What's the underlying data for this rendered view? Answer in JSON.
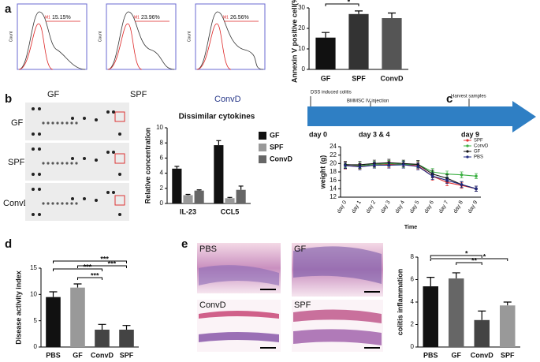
{
  "panel_labels": [
    "a",
    "b",
    "c",
    "d",
    "e"
  ],
  "flow": {
    "y_label": "Count",
    "gate": "M1",
    "percents": [
      "15.15%",
      "23.96%",
      "26.56%"
    ]
  },
  "blots": {
    "columns": [
      "GF",
      "SPF",
      "ConvD"
    ],
    "rows": [
      "GF",
      "SPF",
      "ConvD"
    ]
  },
  "timeline": {
    "events": [
      "DSS induced colitis",
      "BMMSC IV injection",
      "Harvest samples"
    ],
    "days": [
      "day 0",
      "day 3 & 4",
      "day 9"
    ]
  },
  "histology": {
    "labels": [
      "PBS",
      "GF",
      "ConvD",
      "SPF"
    ]
  },
  "chart_data": [
    {
      "type": "bar",
      "y_label": "Annexin V positive cell(%)",
      "categories": [
        "GF",
        "SPF",
        "ConvD"
      ],
      "values": [
        15.5,
        27,
        25
      ],
      "errors": [
        2.5,
        1.5,
        2.5
      ],
      "colors": [
        "#111111",
        "#333333",
        "#555555"
      ],
      "ylim": [
        0,
        30
      ],
      "yticks": [
        0,
        10,
        20,
        30
      ],
      "annotations": [
        "*"
      ]
    },
    {
      "type": "bar",
      "title": "Dissimilar cytokines",
      "y_label": "Relative concentration",
      "categories": [
        "IL-23",
        "CCL5"
      ],
      "series": [
        {
          "name": "GF",
          "color": "#111111",
          "values": [
            4.6,
            7.7
          ],
          "errors": [
            0.3,
            0.6
          ]
        },
        {
          "name": "SPF",
          "color": "#999999",
          "values": [
            1.1,
            0.7
          ],
          "errors": [
            0.1,
            0.1
          ]
        },
        {
          "name": "ConvD",
          "color": "#666666",
          "values": [
            1.7,
            1.8
          ],
          "errors": [
            0.1,
            0.5
          ]
        }
      ],
      "ylim": [
        0,
        10
      ],
      "yticks": [
        0,
        2,
        4,
        6,
        8,
        10
      ]
    },
    {
      "type": "line",
      "y_label": "weight (g)",
      "x_label": "Time",
      "categories": [
        "day 0",
        "day 1",
        "day 2",
        "day 3",
        "day 4",
        "day 5",
        "day 6",
        "day 7",
        "day 8",
        "day 9"
      ],
      "series": [
        {
          "name": "SPF",
          "color": "#e03030",
          "values": [
            19.5,
            19.3,
            19.6,
            19.8,
            19.7,
            19.5,
            17,
            15.5,
            14.8,
            14
          ],
          "errors": [
            0.8,
            0.7,
            0.7,
            0.8,
            0.8,
            0.9,
            1,
            0.8,
            0.7,
            0.6
          ]
        },
        {
          "name": "ConvD",
          "color": "#3cb043",
          "values": [
            19.8,
            19.5,
            19.8,
            20,
            19.8,
            19.8,
            18,
            17.5,
            17.3,
            17
          ],
          "errors": [
            0.7,
            0.7,
            0.7,
            0.7,
            0.8,
            0.8,
            0.8,
            0.7,
            0.7,
            0.6
          ]
        },
        {
          "name": "GF",
          "color": "#111111",
          "values": [
            19.7,
            19.7,
            20,
            20.2,
            20,
            19.8,
            17.5,
            16.5,
            15,
            14
          ],
          "errors": [
            0.8,
            0.8,
            0.8,
            0.8,
            0.8,
            0.9,
            0.9,
            0.8,
            0.7,
            0.6
          ]
        },
        {
          "name": "PBS",
          "color": "#1f2a80",
          "values": [
            19.5,
            19.2,
            19.6,
            19.6,
            19.7,
            19.3,
            17,
            16,
            15,
            14
          ],
          "errors": [
            0.7,
            0.7,
            0.7,
            0.7,
            0.8,
            0.8,
            0.8,
            0.7,
            0.7,
            0.6
          ]
        }
      ],
      "ylim": [
        12,
        24
      ],
      "yticks": [
        12,
        14,
        16,
        18,
        20,
        22,
        24
      ]
    },
    {
      "type": "bar",
      "y_label": "Disease activity index",
      "categories": [
        "PBS",
        "GF",
        "ConvD",
        "SPF"
      ],
      "values": [
        9.5,
        11.3,
        3.3,
        3.3
      ],
      "errors": [
        1,
        0.7,
        1,
        0.8
      ],
      "colors": [
        "#111111",
        "#999999",
        "#444444",
        "#444444"
      ],
      "ylim": [
        0,
        15
      ],
      "yticks": [
        0,
        5,
        10,
        15
      ],
      "annotations": [
        "***",
        "***",
        "***",
        "***"
      ]
    },
    {
      "type": "bar",
      "y_label": "colitis inflammation",
      "categories": [
        "PBS",
        "GF",
        "ConvD",
        "SPF"
      ],
      "values": [
        5.4,
        6.1,
        2.4,
        3.7
      ],
      "errors": [
        0.8,
        0.5,
        0.8,
        0.3
      ],
      "colors": [
        "#111111",
        "#666666",
        "#444444",
        "#999999"
      ],
      "ylim": [
        0,
        8
      ],
      "yticks": [
        0,
        2,
        4,
        6,
        8
      ],
      "annotations": [
        "*",
        "**",
        "*"
      ]
    }
  ]
}
